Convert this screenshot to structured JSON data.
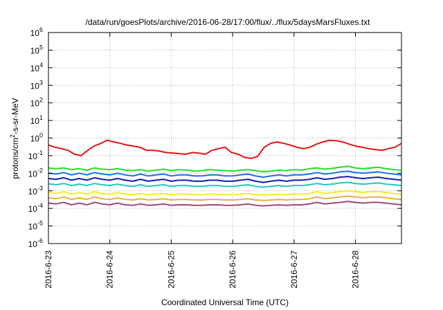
{
  "chart_data": {
    "type": "line",
    "title": "/data/run/goesPlots/archive/2016-06-28/17:00/flux/../flux/5daysMarsFluxes.txt",
    "xlabel": "Coordinated Universal Time (UTC)",
    "ylabel": "protons/cm2-s-sr-MeV",
    "ylabel_base": "protons/cm",
    "ylabel_sup": "2",
    "ylabel_rest": "-s-sr-MeV",
    "yscale": "log",
    "ylim": [
      1e-06,
      1000000.0
    ],
    "yticks": [
      {
        "base": "10",
        "exp": "-6"
      },
      {
        "base": "10",
        "exp": "-5"
      },
      {
        "base": "10",
        "exp": "-4"
      },
      {
        "base": "10",
        "exp": "-3"
      },
      {
        "base": "10",
        "exp": "-2"
      },
      {
        "base": "10",
        "exp": "-1"
      },
      {
        "base": "10",
        "exp": "0"
      },
      {
        "base": "10",
        "exp": "1"
      },
      {
        "base": "10",
        "exp": "2"
      },
      {
        "base": "10",
        "exp": "3"
      },
      {
        "base": "10",
        "exp": "4"
      },
      {
        "base": "10",
        "exp": "5"
      },
      {
        "base": "10",
        "exp": "6"
      }
    ],
    "xlim": [
      "2016-06-23T00:00",
      "2016-06-28T18:00"
    ],
    "xticks": [
      "2016-6-23",
      "2016-6-24",
      "2016-6-25",
      "2016-6-26",
      "2016-6-27",
      "2016-6-28"
    ],
    "grid": true,
    "series": [
      {
        "color": "#e81010",
        "x_start": "2016-06-23T00:00",
        "x_end": "2016-06-28T18:00",
        "y": [
          0.4,
          0.3,
          0.25,
          0.2,
          0.12,
          0.1,
          0.2,
          0.35,
          0.5,
          0.75,
          0.6,
          0.5,
          0.4,
          0.35,
          0.3,
          0.2,
          0.2,
          0.18,
          0.15,
          0.14,
          0.13,
          0.12,
          0.15,
          0.14,
          0.12,
          0.2,
          0.25,
          0.3,
          0.15,
          0.12,
          0.08,
          0.07,
          0.09,
          0.3,
          0.5,
          0.6,
          0.5,
          0.4,
          0.3,
          0.25,
          0.3,
          0.45,
          0.6,
          0.75,
          0.7,
          0.6,
          0.45,
          0.35,
          0.3,
          0.25,
          0.22,
          0.2,
          0.25,
          0.3,
          0.5
        ]
      },
      {
        "color": "#20e020",
        "x_start": "2016-06-23T00:00",
        "x_end": "2016-06-28T18:00",
        "y": [
          0.02,
          0.018,
          0.02,
          0.016,
          0.018,
          0.015,
          0.02,
          0.017,
          0.016,
          0.018,
          0.015,
          0.014,
          0.016,
          0.013,
          0.015,
          0.017,
          0.014,
          0.016,
          0.015,
          0.013,
          0.014,
          0.016,
          0.015,
          0.014,
          0.013,
          0.015,
          0.016,
          0.014,
          0.012,
          0.013,
          0.015,
          0.014,
          0.016,
          0.015,
          0.018,
          0.02,
          0.017,
          0.019,
          0.022,
          0.025,
          0.02,
          0.018,
          0.02,
          0.022,
          0.018,
          0.016,
          0.015
        ]
      },
      {
        "color": "#1a70e8",
        "x_start": "2016-06-23T00:00",
        "x_end": "2016-06-28T18:00",
        "y": [
          0.01,
          0.009,
          0.011,
          0.008,
          0.01,
          0.008,
          0.011,
          0.009,
          0.008,
          0.01,
          0.008,
          0.007,
          0.009,
          0.007,
          0.008,
          0.009,
          0.007,
          0.008,
          0.008,
          0.007,
          0.007,
          0.008,
          0.008,
          0.007,
          0.007,
          0.008,
          0.009,
          0.007,
          0.006,
          0.007,
          0.008,
          0.007,
          0.008,
          0.008,
          0.009,
          0.011,
          0.009,
          0.01,
          0.012,
          0.013,
          0.011,
          0.01,
          0.011,
          0.012,
          0.01,
          0.009,
          0.008
        ]
      },
      {
        "color": "#1020b0",
        "x_start": "2016-06-23T00:00",
        "x_end": "2016-06-28T18:00",
        "y": [
          0.005,
          0.0045,
          0.0055,
          0.004,
          0.005,
          0.004,
          0.0055,
          0.0045,
          0.004,
          0.005,
          0.004,
          0.0035,
          0.0045,
          0.0035,
          0.004,
          0.0045,
          0.0035,
          0.004,
          0.004,
          0.0035,
          0.0035,
          0.004,
          0.004,
          0.0035,
          0.0035,
          0.004,
          0.0045,
          0.0035,
          0.003,
          0.0035,
          0.004,
          0.0035,
          0.004,
          0.004,
          0.0045,
          0.0055,
          0.0045,
          0.005,
          0.006,
          0.0065,
          0.0055,
          0.005,
          0.0055,
          0.006,
          0.005,
          0.0045,
          0.004
        ]
      },
      {
        "color": "#20c8c0",
        "x_start": "2016-06-23T00:00",
        "x_end": "2016-06-28T18:00",
        "y": [
          0.0025,
          0.0022,
          0.0026,
          0.002,
          0.0024,
          0.002,
          0.0026,
          0.0022,
          0.002,
          0.0024,
          0.002,
          0.0018,
          0.0022,
          0.0018,
          0.002,
          0.0022,
          0.0018,
          0.002,
          0.002,
          0.0018,
          0.0018,
          0.002,
          0.002,
          0.0018,
          0.0018,
          0.002,
          0.0022,
          0.0018,
          0.0016,
          0.0018,
          0.002,
          0.0018,
          0.002,
          0.002,
          0.0022,
          0.0026,
          0.0022,
          0.0024,
          0.0028,
          0.003,
          0.0026,
          0.0024,
          0.0026,
          0.0028,
          0.0024,
          0.0022,
          0.002
        ]
      },
      {
        "color": "#f0f020",
        "x_start": "2016-06-23T00:00",
        "x_end": "2016-06-28T18:00",
        "y": [
          0.0008,
          0.0007,
          0.0009,
          0.00065,
          0.0008,
          0.00065,
          0.0009,
          0.0007,
          0.00065,
          0.0008,
          0.00065,
          0.0006,
          0.0007,
          0.0006,
          0.00065,
          0.0007,
          0.0006,
          0.00065,
          0.00065,
          0.0006,
          0.0006,
          0.00065,
          0.00065,
          0.0006,
          0.0006,
          0.00065,
          0.0007,
          0.0006,
          0.00055,
          0.0006,
          0.00065,
          0.0006,
          0.00065,
          0.00065,
          0.0007,
          0.0009,
          0.0007,
          0.0008,
          0.0009,
          0.001,
          0.0009,
          0.0008,
          0.0009,
          0.0009,
          0.0008,
          0.0007,
          0.00065
        ]
      },
      {
        "color": "#e8b040",
        "x_start": "2016-06-23T00:00",
        "x_end": "2016-06-28T18:00",
        "y": [
          0.0004,
          0.00035,
          0.00045,
          0.00032,
          0.0004,
          0.00032,
          0.00045,
          0.00035,
          0.00032,
          0.0004,
          0.00032,
          0.0003,
          0.00035,
          0.0003,
          0.00032,
          0.00035,
          0.0003,
          0.00032,
          0.00032,
          0.0003,
          0.0003,
          0.00032,
          0.00032,
          0.0003,
          0.0003,
          0.00032,
          0.00035,
          0.0003,
          0.00028,
          0.0003,
          0.00032,
          0.0003,
          0.00032,
          0.00032,
          0.00035,
          0.00045,
          0.00035,
          0.0004,
          0.00045,
          0.0005,
          0.00045,
          0.0004,
          0.00045,
          0.00045,
          0.0004,
          0.00035,
          0.00032
        ]
      },
      {
        "color": "#a04878",
        "x_start": "2016-06-23T00:00",
        "x_end": "2016-06-28T18:00",
        "y": [
          0.0002,
          0.00018,
          0.00022,
          0.00016,
          0.0002,
          0.00016,
          0.00022,
          0.00018,
          0.00016,
          0.0002,
          0.00016,
          0.00015,
          0.00018,
          0.00015,
          0.00016,
          0.00018,
          0.00015,
          0.00016,
          0.00016,
          0.00015,
          0.00015,
          0.00016,
          0.00016,
          0.00015,
          0.00015,
          0.00016,
          0.00018,
          0.00015,
          0.00014,
          0.00015,
          0.00016,
          0.00015,
          0.00016,
          0.00016,
          0.00018,
          0.00022,
          0.00018,
          0.0002,
          0.00022,
          0.00025,
          0.00022,
          0.0002,
          0.00022,
          0.00022,
          0.0002,
          0.00018,
          0.00016
        ]
      }
    ]
  }
}
